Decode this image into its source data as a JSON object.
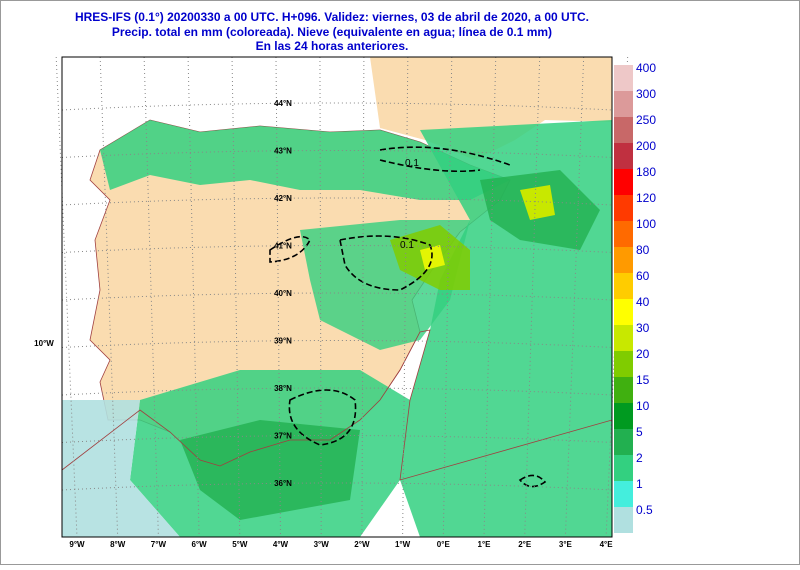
{
  "header": {
    "lines": [
      "HRES-IFS (0.1°) 20200330 a 00 UTC.  H+096. Validez: viernes, 03 de abril de 2020,  a  00 UTC.",
      "Precip. total en mm (coloreada). Nieve (equivalente en agua; línea de 0.1 mm)",
      "En las 24 horas anteriores."
    ]
  },
  "map": {
    "latitudes": [
      "44°N",
      "43°N",
      "42°N",
      "41°N",
      "40°N",
      "39°N",
      "38°N",
      "37°N",
      "36°N"
    ],
    "longitudes": [
      "9°W",
      "8°W",
      "7°W",
      "6°W",
      "5°W",
      "4°W",
      "3°W",
      "2°W",
      "1°W",
      "0°E",
      "1°E",
      "2°E",
      "3°E",
      "4°E"
    ],
    "left_label": "10°W",
    "contour_labels": [
      "0.1",
      "0.1"
    ]
  },
  "scale": {
    "levels": [
      {
        "label": "400",
        "color": "#eec8c8"
      },
      {
        "label": "300",
        "color": "#dc9a9a"
      },
      {
        "label": "250",
        "color": "#c86868"
      },
      {
        "label": "200",
        "color": "#c03040"
      },
      {
        "label": "180",
        "color": "#ff0000"
      },
      {
        "label": "120",
        "color": "#ff3a00"
      },
      {
        "label": "100",
        "color": "#ff6a00"
      },
      {
        "label": "80",
        "color": "#ff9a00"
      },
      {
        "label": "60",
        "color": "#ffcc00"
      },
      {
        "label": "40",
        "color": "#ffff00"
      },
      {
        "label": "30",
        "color": "#c8e800"
      },
      {
        "label": "20",
        "color": "#80cc00"
      },
      {
        "label": "15",
        "color": "#40b010"
      },
      {
        "label": "10",
        "color": "#009a20"
      },
      {
        "label": "5",
        "color": "#22b050"
      },
      {
        "label": "2",
        "color": "#33d080"
      },
      {
        "label": "1",
        "color": "#44eedd"
      },
      {
        "label": "0.5",
        "color": "#b0e0e0"
      }
    ]
  }
}
